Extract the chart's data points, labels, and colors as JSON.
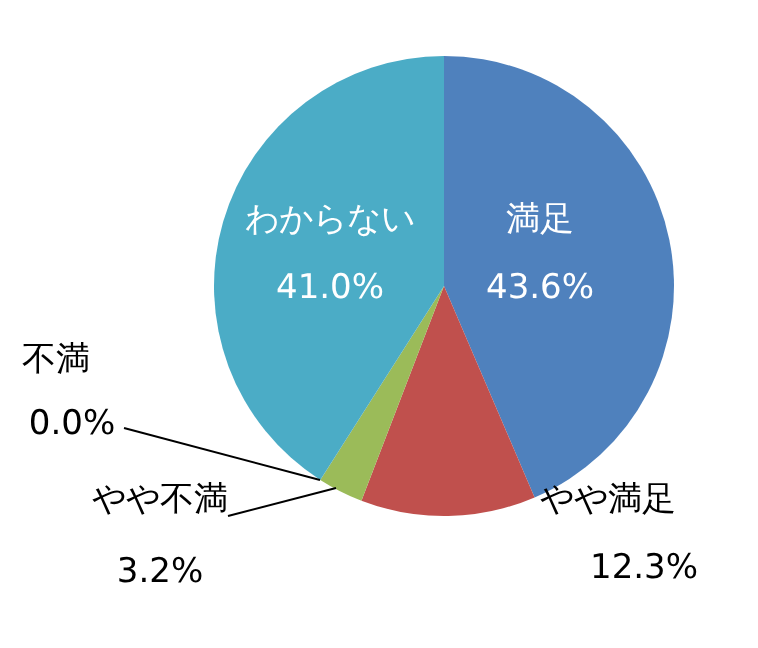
{
  "chart_data": {
    "type": "pie",
    "categories": [
      "満足",
      "やや満足",
      "やや不満",
      "不満",
      "わからない"
    ],
    "values": [
      43.6,
      12.3,
      3.2,
      0.0,
      41.0
    ],
    "value_labels": [
      "43.6%",
      "12.3%",
      "3.2%",
      "0.0%",
      "41.0%"
    ],
    "colors": [
      "#4f81bd",
      "#c0504d",
      "#9bbb59",
      "#8064a2",
      "#4bacc6"
    ]
  }
}
